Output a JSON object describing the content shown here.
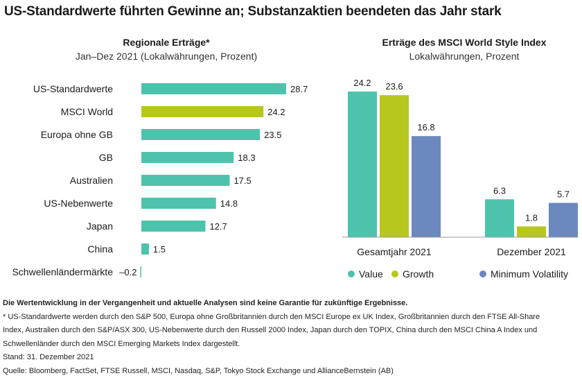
{
  "title": "US-Standardwerte führten Gewinne an; Substanzaktien beendeten das Jahr stark",
  "colors": {
    "teal": "#4dc3ad",
    "lime": "#b6c81e",
    "blue": "#6b88bf",
    "axis": "#999999"
  },
  "chart_data": [
    {
      "type": "bar",
      "orientation": "horizontal",
      "title": "Regionale Erträge*",
      "subtitle": "Jan–Dez 2021 (Lokalwährungen, Prozent)",
      "categories": [
        "US-Standardwerte",
        "MSCI World",
        "Europa ohne GB",
        "GB",
        "Australien",
        "US-Nebenwerte",
        "Japan",
        "China",
        "Schwellenländermärkte"
      ],
      "values": [
        28.7,
        24.2,
        23.5,
        18.3,
        17.5,
        14.8,
        12.7,
        1.5,
        -0.2
      ],
      "labels": [
        "28.7",
        "24.2",
        "23.5",
        "18.3",
        "17.5",
        "14.8",
        "12.7",
        "1.5",
        "–0.2"
      ],
      "highlight_index": 1,
      "xlim": [
        0,
        28.7
      ]
    },
    {
      "type": "bar",
      "title": "Erträge des MSCI World Style Index",
      "subtitle": "Lokalwährungen, Prozent",
      "categories": [
        "Gesamtjahr 2021",
        "Dezember 2021"
      ],
      "series": [
        {
          "name": "Value",
          "values": [
            24.2,
            6.3
          ],
          "labels": [
            "24.2",
            "6.3"
          ]
        },
        {
          "name": "Growth",
          "values": [
            23.6,
            1.8
          ],
          "labels": [
            "23.6",
            "1.8"
          ]
        },
        {
          "name": "Minimum Volatility",
          "values": [
            16.8,
            5.7
          ],
          "labels": [
            "16.8",
            "5.7"
          ]
        }
      ],
      "ylim": [
        0,
        24.2
      ],
      "legend": "bottom"
    }
  ],
  "footnotes": {
    "disclaimer": "Die Wertentwicklung in der Vergangenheit und aktuelle Analysen sind keine Garantie für zukünftige Ergebnisse.",
    "note_line1": "* US-Standardwerte werden durch den S&P 500, Europa ohne Großbritannien durch den MSCI Europe ex UK Index, Großbritannien durch den FTSE All-Share",
    "note_line2": "Index, Australien durch den S&P/ASX 300, US-Nebenwerte durch den Russell 2000 Index, Japan durch den TOPIX, China durch den MSCI China A Index und",
    "note_line3": "Schwellenländer durch den MSCI Emerging Markets Index dargestellt.",
    "date": "Stand: 31. Dezember 2021",
    "source": "Quelle: Bloomberg, FactSet, FTSE Russell, MSCI, Nasdaq, S&P, Tokyo Stock Exchange und AllianceBernstein (AB)"
  }
}
